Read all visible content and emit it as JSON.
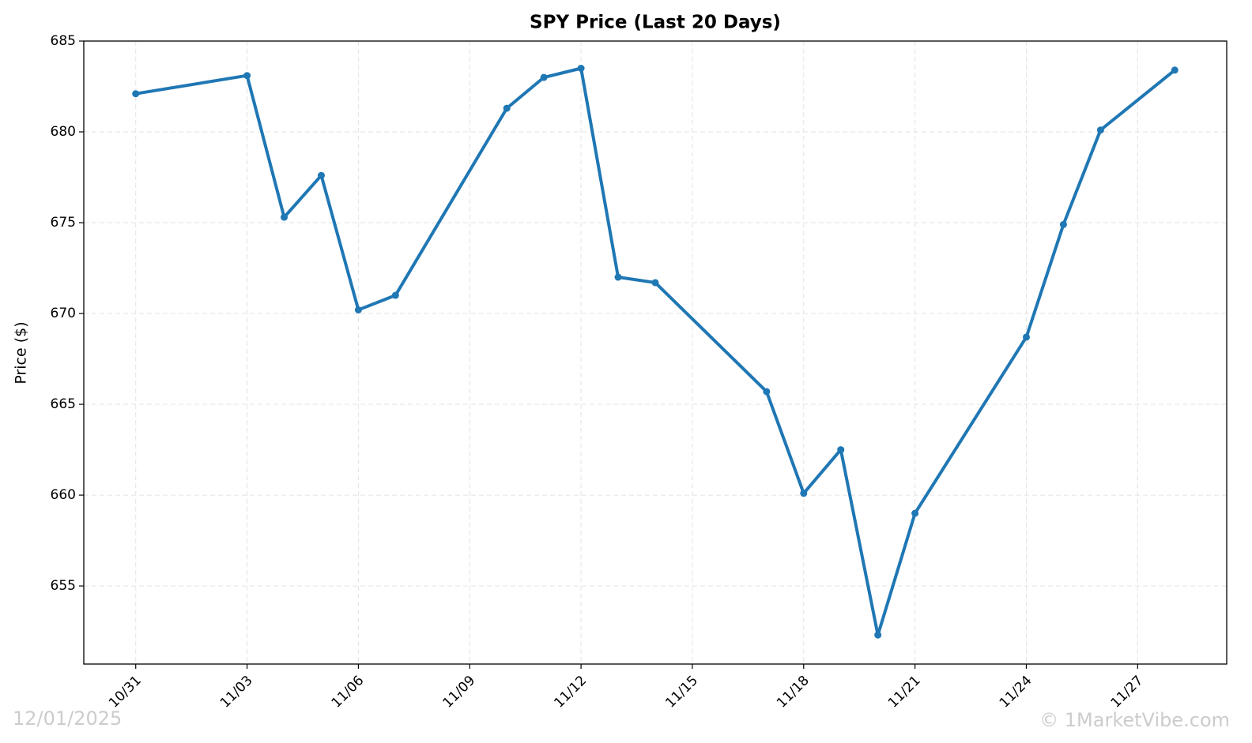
{
  "chart_data": {
    "type": "line",
    "title": "SPY Price (Last 20 Days)",
    "y_label": "Price ($)",
    "x": [
      "10/31",
      "11/03",
      "11/04",
      "11/05",
      "11/06",
      "11/07",
      "11/10",
      "11/11",
      "11/12",
      "11/13",
      "11/14",
      "11/17",
      "11/18",
      "11/19",
      "11/20",
      "11/21",
      "11/24",
      "11/25",
      "11/26",
      "11/28"
    ],
    "series": [
      {
        "name": "SPY",
        "color": "#1f77b4",
        "values": [
          682.1,
          683.1,
          675.3,
          677.6,
          670.2,
          671.0,
          681.3,
          683.0,
          683.5,
          672.0,
          671.7,
          665.7,
          660.1,
          662.5,
          652.3,
          659.0,
          668.7,
          674.9,
          680.1,
          683.4
        ]
      }
    ],
    "ylim": [
      650.7,
      685
    ],
    "yticks": [
      655,
      660,
      665,
      670,
      675,
      680,
      685
    ],
    "xticks": [
      "10/31",
      "11/03",
      "11/06",
      "11/09",
      "11/12",
      "11/15",
      "11/18",
      "11/21",
      "11/24",
      "11/27"
    ],
    "grid": true,
    "date_stamp": "12/01/2025",
    "credit": "© 1MarketVibe.com"
  }
}
